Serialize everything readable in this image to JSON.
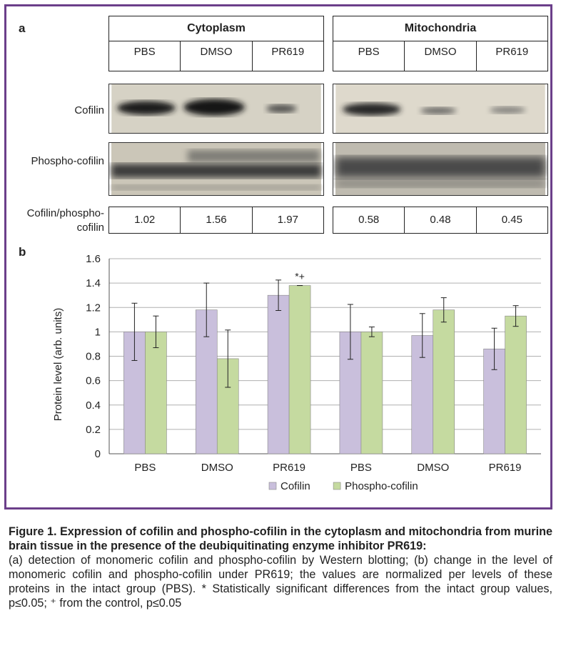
{
  "panel_a": {
    "letter": "a",
    "groups": [
      {
        "title": "Cytoplasm",
        "cols": [
          "PBS",
          "DMSO",
          "PR619"
        ]
      },
      {
        "title": "Mitochondria",
        "cols": [
          "PBS",
          "DMSO",
          "PR619"
        ]
      }
    ],
    "row_labels": {
      "cofilin": "Cofilin",
      "phospho": "Phospho-cofilin",
      "ratio": "Cofilin/phospho-cofilin"
    },
    "ratio_values": {
      "cytoplasm": [
        "1.02",
        "1.56",
        "1.97"
      ],
      "mitochondria": [
        "0.58",
        "0.48",
        "0.45"
      ]
    }
  },
  "panel_b": {
    "letter": "b"
  },
  "chart_data": {
    "type": "bar",
    "ylabel": "Protein level (arb. units)",
    "ylim": [
      0,
      1.6
    ],
    "yticks": [
      "0",
      "0.2",
      "0.4",
      "0.6",
      "0.8",
      "1",
      "1.2",
      "1.4",
      "1.6"
    ],
    "categories": [
      "PBS",
      "DMSO",
      "PR619",
      "PBS",
      "DMSO",
      "PR619"
    ],
    "grid": true,
    "legend_position": "bottom",
    "series": [
      {
        "name": "Cofilin",
        "color": "#c9bfdc",
        "values": [
          1.0,
          1.18,
          1.3,
          1.0,
          0.97,
          0.86
        ],
        "errors": [
          0.235,
          0.22,
          0.125,
          0.225,
          0.18,
          0.17
        ]
      },
      {
        "name": "Phospho-cofilin",
        "color": "#c5daa0",
        "values": [
          1.0,
          0.78,
          1.38,
          1.0,
          1.18,
          1.13
        ],
        "errors": [
          0.13,
          0.235,
          0.0,
          0.04,
          0.1,
          0.085
        ]
      }
    ],
    "annotations": [
      {
        "category_index": 2,
        "series_index": 1,
        "text": "*+"
      }
    ]
  },
  "caption": {
    "title": "Figure 1. Expression of cofilin and phospho-cofilin in the cytoplasm and mitochondria from murine brain tissue in the presence of the deubiquitinating enzyme inhibitor PR619:",
    "body": "(a) detection of monomeric cofilin and phospho-cofilin by Western blotting; (b) change in the level of monomeric cofilin and phospho-cofilin under PR619; the values are normalized per levels of these proteins in the intact group (PBS). * Statistically significant differences from the intact group values, p≤0.05; ⁺ from the control, p≤0.05"
  }
}
